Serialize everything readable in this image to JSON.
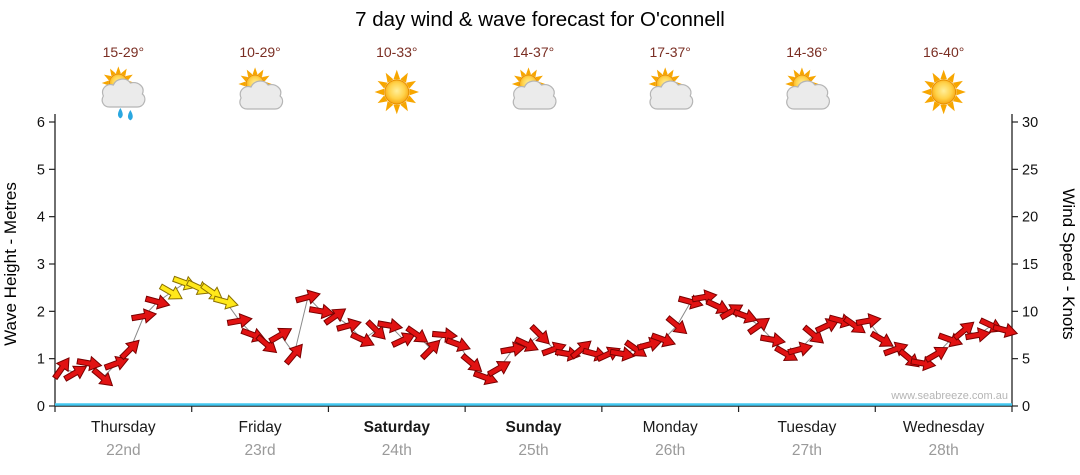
{
  "chart_data": {
    "type": "line",
    "title": "7 day wind & wave forecast for O'connell",
    "left_axis": {
      "label": "Wave Height - Metres",
      "min": 0,
      "max": 6,
      "ticks": [
        0,
        1,
        2,
        3,
        4,
        5,
        6
      ]
    },
    "right_axis": {
      "label": "Wind Speed - Knots",
      "min": 0,
      "max": 30,
      "ticks": [
        0,
        5,
        10,
        15,
        20,
        25,
        30
      ]
    },
    "days": [
      {
        "name": "Thursday",
        "date": "22nd",
        "temp": "15-29°",
        "icon": "sun-cloud-rain",
        "bold": false
      },
      {
        "name": "Friday",
        "date": "23rd",
        "temp": "10-29°",
        "icon": "sun-cloud",
        "bold": false
      },
      {
        "name": "Saturday",
        "date": "24th",
        "temp": "10-33°",
        "icon": "sun",
        "bold": true
      },
      {
        "name": "Sunday",
        "date": "25th",
        "temp": "14-37°",
        "icon": "sun-cloud",
        "bold": true
      },
      {
        "name": "Monday",
        "date": "26th",
        "temp": "17-37°",
        "icon": "sun-cloud",
        "bold": false
      },
      {
        "name": "Tuesday",
        "date": "27th",
        "temp": "14-36°",
        "icon": "sun-cloud",
        "bold": false
      },
      {
        "name": "Wednesday",
        "date": "28th",
        "temp": "16-40°",
        "icon": "sun",
        "bold": false
      }
    ],
    "wind_series": {
      "name": "Wind Speed",
      "units": "knots",
      "point_format": [
        "day_fraction",
        "knots",
        "direction_deg",
        "is_strong_yellow"
      ],
      "points": [
        [
          0.05,
          4,
          -55,
          0
        ],
        [
          0.15,
          3.5,
          -30,
          0
        ],
        [
          0.25,
          4.5,
          10,
          0
        ],
        [
          0.35,
          3,
          40,
          0
        ],
        [
          0.45,
          4.5,
          -20,
          0
        ],
        [
          0.55,
          6,
          -45,
          0
        ],
        [
          0.65,
          9.5,
          -10,
          0
        ],
        [
          0.75,
          11,
          15,
          0
        ],
        [
          0.85,
          12,
          30,
          1
        ],
        [
          0.95,
          13,
          20,
          1
        ],
        [
          1.05,
          12.5,
          25,
          1
        ],
        [
          1.15,
          12,
          35,
          1
        ],
        [
          1.25,
          11,
          15,
          1
        ],
        [
          1.35,
          9,
          -10,
          0
        ],
        [
          1.45,
          7.5,
          20,
          0
        ],
        [
          1.55,
          6.5,
          40,
          0
        ],
        [
          1.65,
          7.5,
          -30,
          0
        ],
        [
          1.75,
          5.5,
          -50,
          0
        ],
        [
          1.85,
          11.5,
          -15,
          0
        ],
        [
          1.95,
          10,
          10,
          0
        ],
        [
          2.05,
          9.5,
          -35,
          0
        ],
        [
          2.15,
          8.5,
          -15,
          0
        ],
        [
          2.25,
          7,
          25,
          0
        ],
        [
          2.35,
          8,
          45,
          0
        ],
        [
          2.45,
          8.5,
          10,
          0
        ],
        [
          2.55,
          7,
          -25,
          0
        ],
        [
          2.65,
          7.5,
          35,
          0
        ],
        [
          2.75,
          6,
          -45,
          0
        ],
        [
          2.85,
          7.5,
          5,
          0
        ],
        [
          2.95,
          6.5,
          20,
          0
        ],
        [
          3.05,
          4.5,
          40,
          0
        ],
        [
          3.15,
          3,
          20,
          0
        ],
        [
          3.25,
          4,
          -30,
          0
        ],
        [
          3.35,
          6,
          -10,
          0
        ],
        [
          3.45,
          6.5,
          25,
          0
        ],
        [
          3.55,
          7.5,
          45,
          0
        ],
        [
          3.65,
          6,
          -20,
          0
        ],
        [
          3.75,
          5.5,
          10,
          0
        ],
        [
          3.85,
          6,
          -40,
          0
        ],
        [
          3.95,
          5.5,
          15,
          0
        ],
        [
          4.05,
          5.5,
          -25,
          0
        ],
        [
          4.15,
          5.5,
          10,
          0
        ],
        [
          4.25,
          6,
          35,
          0
        ],
        [
          4.35,
          6.5,
          -15,
          0
        ],
        [
          4.45,
          7,
          20,
          0
        ],
        [
          4.55,
          8.5,
          40,
          0
        ],
        [
          4.65,
          11,
          15,
          0
        ],
        [
          4.75,
          11.5,
          -10,
          0
        ],
        [
          4.85,
          10.5,
          25,
          0
        ],
        [
          4.95,
          10,
          -30,
          0
        ],
        [
          5.05,
          9.5,
          20,
          0
        ],
        [
          5.15,
          8.5,
          -35,
          0
        ],
        [
          5.25,
          7,
          10,
          0
        ],
        [
          5.35,
          5.5,
          30,
          0
        ],
        [
          5.45,
          6,
          -15,
          0
        ],
        [
          5.55,
          7.5,
          40,
          0
        ],
        [
          5.65,
          8.5,
          -25,
          0
        ],
        [
          5.75,
          9,
          15,
          0
        ],
        [
          5.85,
          8.5,
          35,
          0
        ],
        [
          5.95,
          9,
          -10,
          0
        ],
        [
          6.05,
          7,
          30,
          0
        ],
        [
          6.15,
          6,
          -20,
          0
        ],
        [
          6.25,
          5,
          40,
          0
        ],
        [
          6.35,
          4.5,
          10,
          0
        ],
        [
          6.45,
          5.5,
          -30,
          0
        ],
        [
          6.55,
          7,
          20,
          0
        ],
        [
          6.65,
          8,
          -40,
          0
        ],
        [
          6.75,
          7.5,
          -10,
          0
        ],
        [
          6.85,
          8.5,
          25,
          0
        ],
        [
          6.95,
          8,
          15,
          0
        ]
      ]
    },
    "wave_series": {
      "name": "Wave Height",
      "units": "metres",
      "constant": 0
    },
    "watermark": "www.seabreeze.com.au",
    "colors": {
      "arrow_red": "#e11212",
      "arrow_red_outline": "#7a0000",
      "arrow_yellow": "#ffe81a",
      "arrow_yellow_outline": "#8a7000",
      "wave_line": "#44c8f0",
      "temp_text": "#7a2e23",
      "date_text": "#9a9a9a",
      "connecting_line": "#8a8a8a"
    }
  }
}
